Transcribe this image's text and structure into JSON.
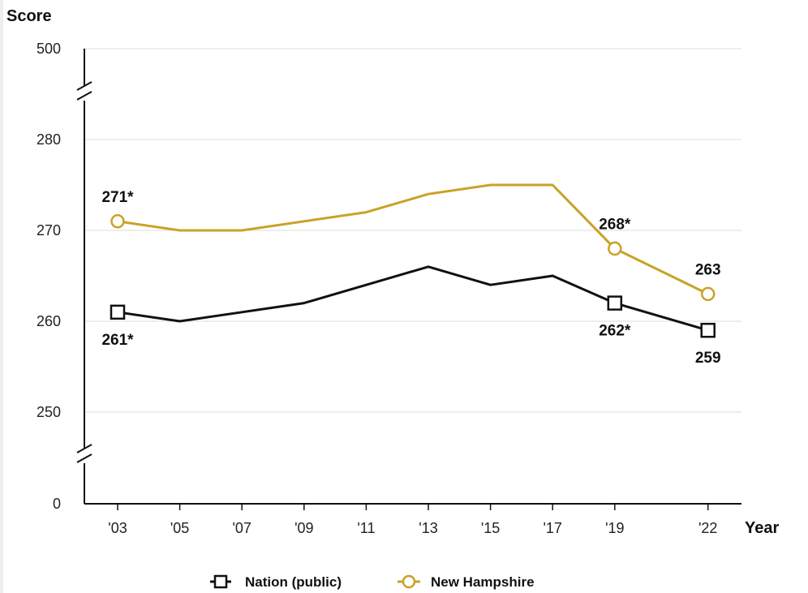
{
  "chart_data": {
    "type": "line",
    "ylabel": "Score",
    "xlabel": "Year",
    "x": [
      "'03",
      "'05",
      "'07",
      "'09",
      "'11",
      "'13",
      "'15",
      "'17",
      "'19",
      "'22"
    ],
    "x_years": [
      2003,
      2005,
      2007,
      2009,
      2011,
      2013,
      2015,
      2017,
      2019,
      2022
    ],
    "y_ticks": [
      0,
      250,
      260,
      270,
      280,
      500
    ],
    "y_axis_breaks": true,
    "series": [
      {
        "name": "Nation (public)",
        "color": "#111111",
        "marker": "square",
        "values": [
          261,
          260,
          261,
          262,
          264,
          266,
          264,
          265,
          262,
          259
        ],
        "labels": [
          {
            "index": 0,
            "text": "261*",
            "position": "below"
          },
          {
            "index": 8,
            "text": "262*",
            "position": "below"
          },
          {
            "index": 9,
            "text": "259",
            "position": "below"
          }
        ]
      },
      {
        "name": "New Hampshire",
        "color": "#c9a227",
        "marker": "circle",
        "values": [
          271,
          270,
          270,
          271,
          272,
          274,
          275,
          275,
          268,
          263
        ],
        "labels": [
          {
            "index": 0,
            "text": "271*",
            "position": "above"
          },
          {
            "index": 8,
            "text": "268*",
            "position": "above"
          },
          {
            "index": 9,
            "text": "263",
            "position": "above"
          }
        ]
      }
    ],
    "grid": true,
    "legend": "bottom-center"
  }
}
